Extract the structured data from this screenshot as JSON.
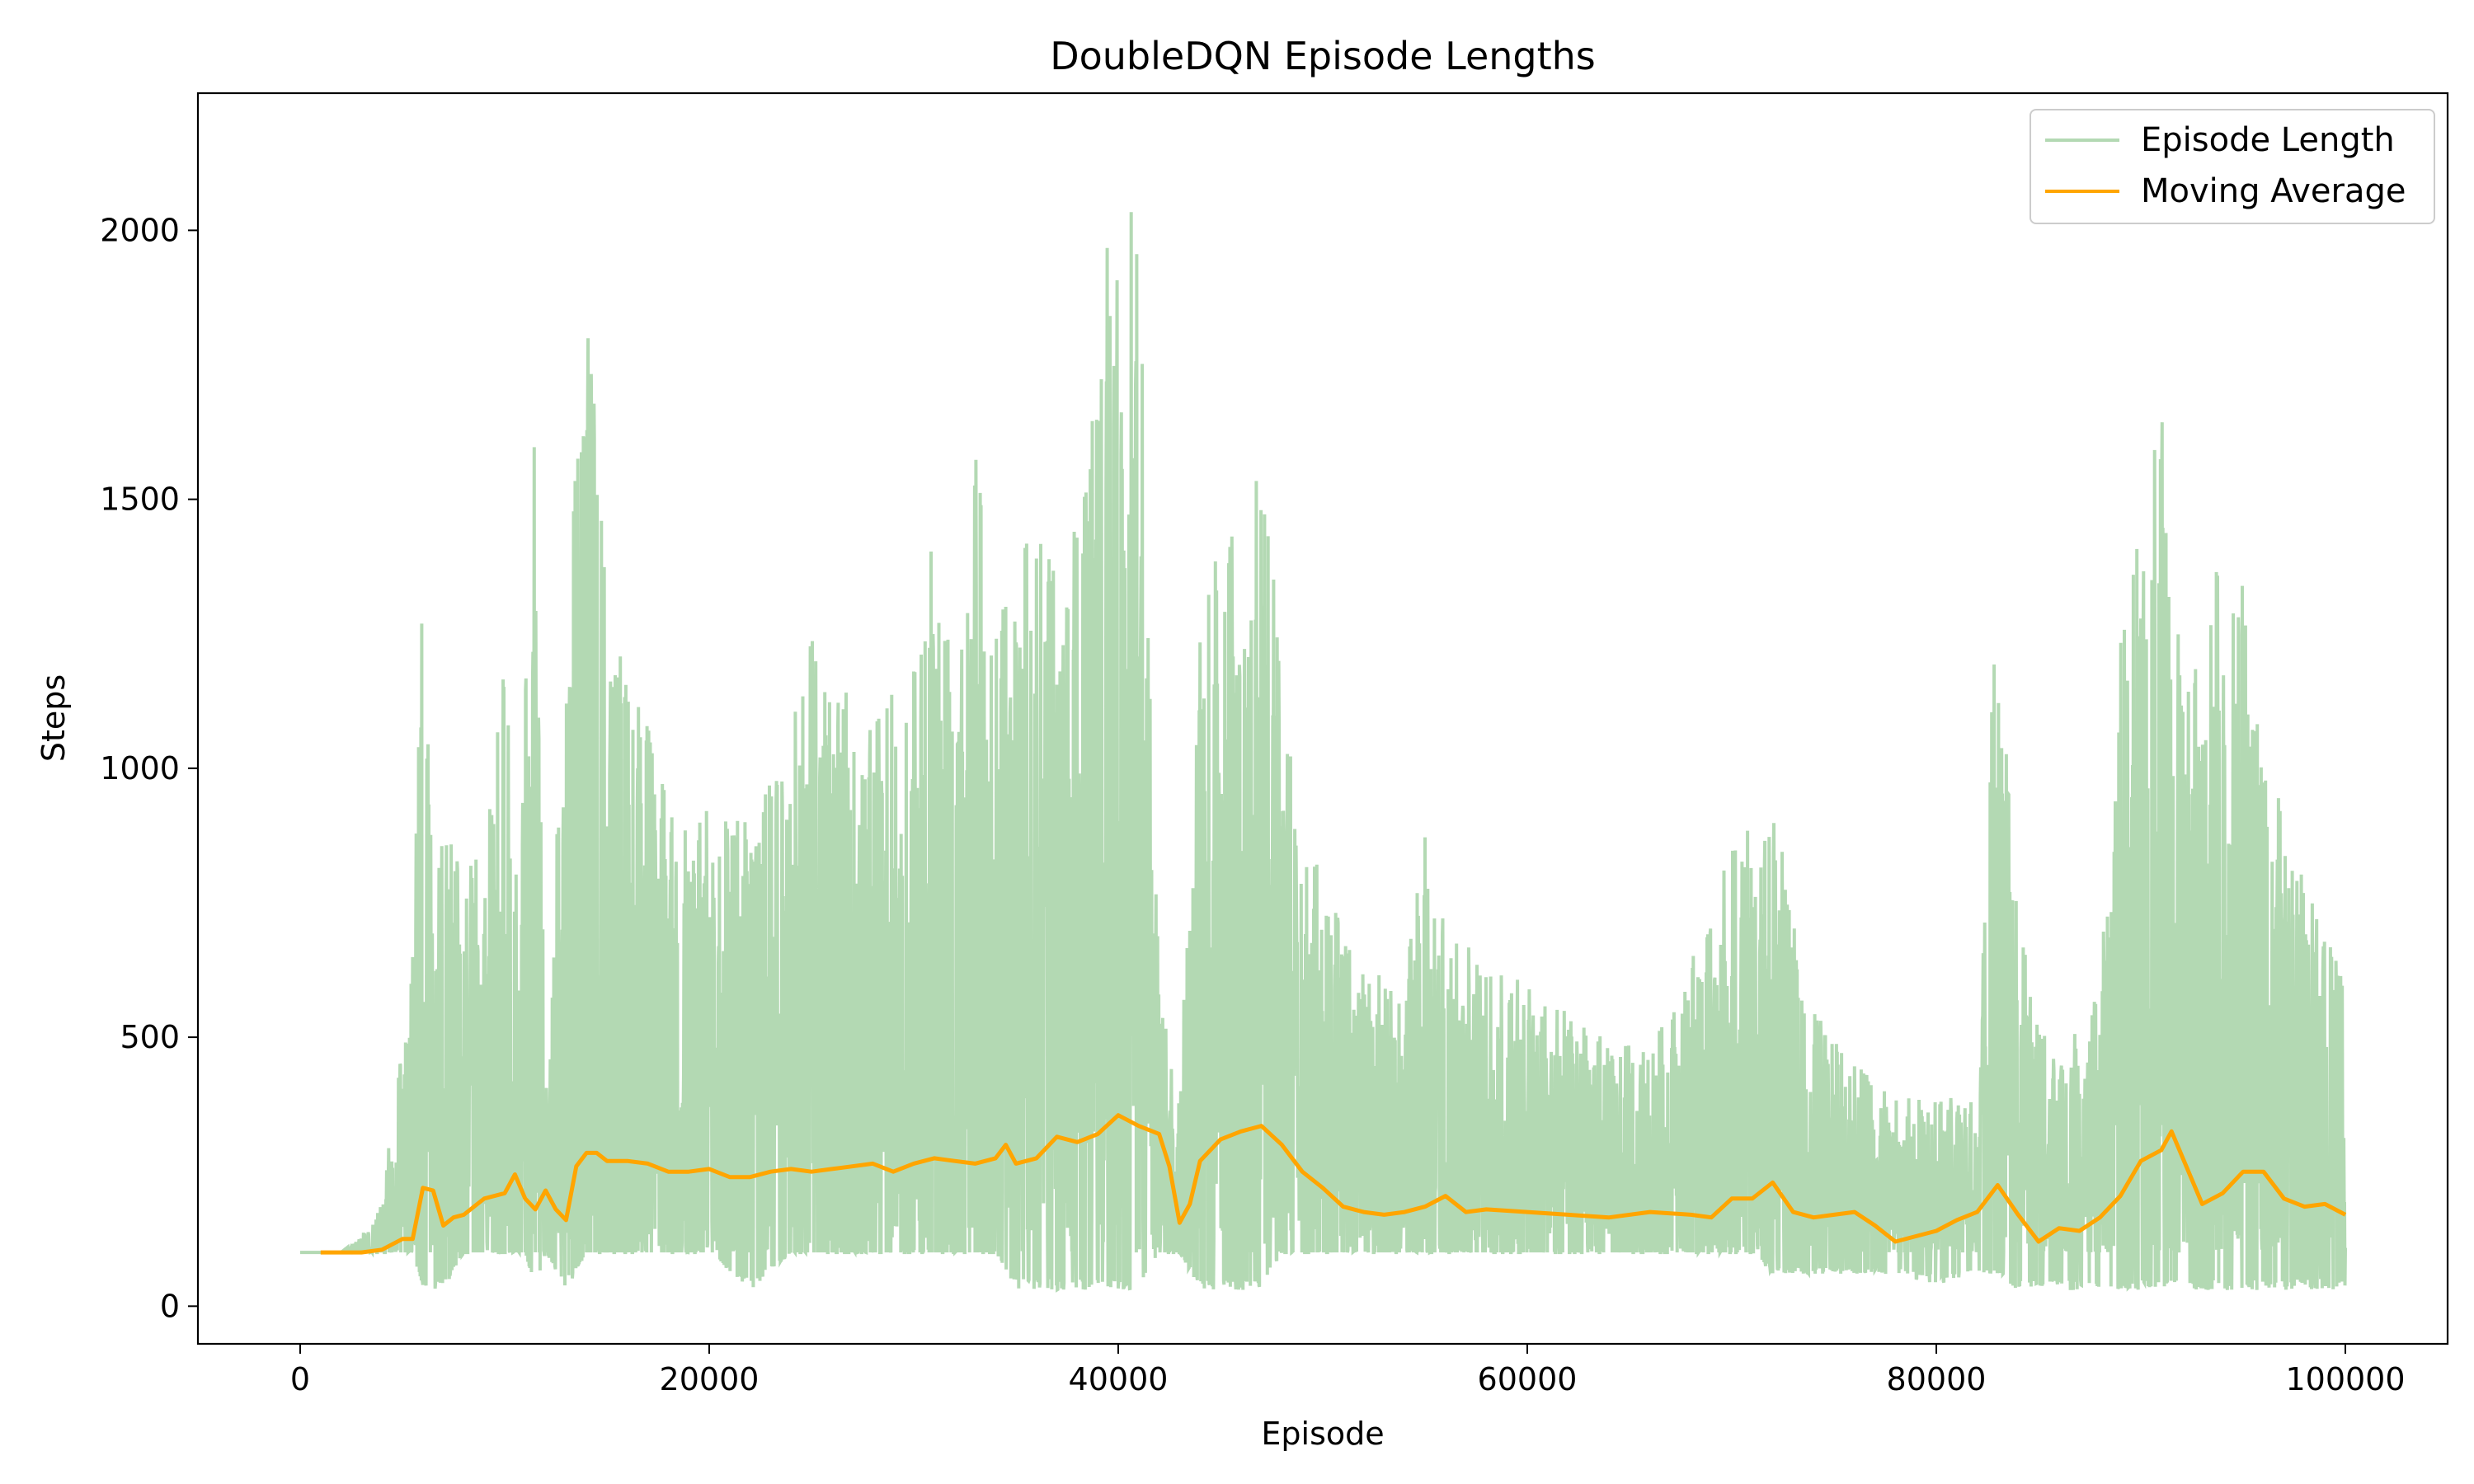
{
  "chart_data": {
    "type": "line",
    "title": "DoubleDQN Episode Lengths",
    "xlabel": "Episode",
    "ylabel": "Steps",
    "xlim": [
      -5000,
      105000
    ],
    "ylim": [
      -70,
      2255
    ],
    "xticks": [
      0,
      20000,
      40000,
      60000,
      80000,
      100000
    ],
    "yticks": [
      0,
      500,
      1000,
      1500,
      2000
    ],
    "grid": false,
    "legend_position": "top-right",
    "series": [
      {
        "name": "Episode Length",
        "color": "#b3d9b3",
        "style": "dense-noisy",
        "x": [
          0,
          2000,
          3000,
          4000,
          5000,
          5500,
          6000,
          6500,
          7000,
          8000,
          9000,
          10000,
          10500,
          11000,
          11500,
          12000,
          13000,
          14000,
          15000,
          16000,
          17000,
          18000,
          19000,
          20000,
          22000,
          24000,
          25000,
          26000,
          28000,
          30000,
          31000,
          32000,
          33000,
          34000,
          35000,
          36000,
          37000,
          38000,
          39000,
          39500,
          40000,
          40500,
          41000,
          42000,
          43000,
          44000,
          45000,
          46000,
          47000,
          48000,
          49000,
          50000,
          52000,
          54000,
          55000,
          56000,
          58000,
          60000,
          62000,
          64000,
          66000,
          68000,
          70000,
          71000,
          72000,
          74000,
          76000,
          78000,
          80000,
          82000,
          83000,
          84000,
          86000,
          88000,
          89000,
          90000,
          91000,
          92000,
          94000,
          95000,
          96000,
          98000,
          100000
        ],
        "upper": [
          100,
          100,
          130,
          200,
          500,
          700,
          1500,
          700,
          900,
          800,
          900,
          1200,
          900,
          1200,
          1650,
          450,
          1250,
          1900,
          1300,
          1200,
          1100,
          950,
          900,
          950,
          900,
          1100,
          1250,
          1150,
          1150,
          1200,
          1450,
          1200,
          1700,
          1300,
          1400,
          1550,
          1350,
          1500,
          1700,
          2100,
          1950,
          2050,
          2000,
          600,
          380,
          1300,
          1500,
          1400,
          1600,
          1200,
          900,
          800,
          650,
          600,
          900,
          700,
          650,
          600,
          550,
          500,
          500,
          650,
          850,
          900,
          950,
          550,
          450,
          400,
          380,
          400,
          1400,
          700,
          450,
          600,
          1250,
          1450,
          1700,
          1200,
          1400,
          1350,
          1050,
          800,
          600
        ],
        "lower": [
          100,
          100,
          100,
          100,
          100,
          100,
          30,
          30,
          30,
          100,
          100,
          100,
          100,
          100,
          30,
          100,
          30,
          100,
          100,
          100,
          100,
          100,
          100,
          100,
          30,
          100,
          100,
          100,
          100,
          100,
          100,
          100,
          100,
          100,
          30,
          30,
          30,
          30,
          30,
          30,
          30,
          30,
          30,
          100,
          100,
          30,
          30,
          30,
          30,
          100,
          100,
          100,
          100,
          100,
          100,
          100,
          100,
          100,
          100,
          100,
          100,
          100,
          100,
          100,
          60,
          60,
          60,
          60,
          40,
          60,
          60,
          30,
          30,
          30,
          30,
          30,
          30,
          30,
          30,
          30,
          30,
          30,
          30
        ]
      },
      {
        "name": "Moving Average",
        "color": "#ffa500",
        "x": [
          1000,
          2000,
          3000,
          4000,
          4500,
          5000,
          5500,
          6000,
          6500,
          7000,
          7500,
          8000,
          8500,
          9000,
          9500,
          10000,
          10500,
          11000,
          11500,
          12000,
          12500,
          13000,
          13500,
          14000,
          14500,
          15000,
          16000,
          17000,
          18000,
          19000,
          20000,
          21000,
          22000,
          23000,
          24000,
          25000,
          26000,
          27000,
          28000,
          29000,
          30000,
          31000,
          32000,
          33000,
          34000,
          34500,
          35000,
          36000,
          37000,
          38000,
          39000,
          40000,
          41000,
          42000,
          42500,
          43000,
          43500,
          44000,
          45000,
          46000,
          47000,
          48000,
          49000,
          50000,
          51000,
          52000,
          53000,
          54000,
          55000,
          56000,
          57000,
          58000,
          60000,
          62000,
          64000,
          66000,
          68000,
          69000,
          70000,
          71000,
          72000,
          73000,
          74000,
          75000,
          76000,
          77000,
          78000,
          79000,
          80000,
          81000,
          82000,
          83000,
          84000,
          85000,
          86000,
          87000,
          88000,
          89000,
          90000,
          91000,
          91500,
          92000,
          93000,
          94000,
          95000,
          96000,
          97000,
          98000,
          99000,
          100000
        ],
        "values": [
          100,
          100,
          100,
          105,
          115,
          125,
          125,
          220,
          215,
          150,
          165,
          170,
          185,
          200,
          205,
          210,
          245,
          200,
          180,
          215,
          180,
          160,
          260,
          285,
          285,
          270,
          270,
          265,
          250,
          250,
          255,
          240,
          240,
          250,
          255,
          250,
          255,
          260,
          265,
          250,
          265,
          275,
          270,
          265,
          275,
          300,
          265,
          275,
          315,
          305,
          320,
          355,
          335,
          320,
          260,
          155,
          190,
          270,
          310,
          325,
          335,
          300,
          250,
          220,
          185,
          175,
          170,
          175,
          185,
          205,
          175,
          180,
          175,
          170,
          165,
          175,
          170,
          165,
          200,
          200,
          230,
          175,
          165,
          170,
          175,
          150,
          120,
          130,
          140,
          160,
          175,
          225,
          170,
          120,
          145,
          140,
          165,
          205,
          270,
          290,
          325,
          280,
          190,
          210,
          250,
          250,
          200,
          185,
          190,
          170
        ]
      }
    ]
  }
}
